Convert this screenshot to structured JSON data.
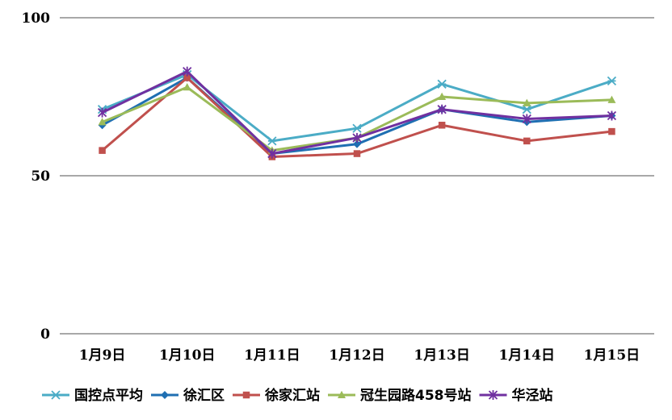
{
  "chart_data": {
    "type": "line",
    "categories": [
      "1月9日",
      "1月10日",
      "1月11日",
      "1月12日",
      "1月13日",
      "1月14日",
      "1月15日"
    ],
    "ylim": [
      0,
      100
    ],
    "yticks": [
      0,
      50,
      100
    ],
    "grid": true,
    "legend_position": "bottom",
    "series": [
      {
        "name": "国控点平均",
        "color": "#4bacc6",
        "marker": "asterisk",
        "values": [
          71,
          82,
          61,
          65,
          79,
          71,
          80
        ]
      },
      {
        "name": "徐汇区",
        "color": "#1f6fb2",
        "marker": "diamond",
        "values": [
          66,
          81,
          57,
          60,
          71,
          67,
          69
        ]
      },
      {
        "name": "徐家汇站",
        "color": "#c0504d",
        "marker": "square",
        "values": [
          58,
          81,
          56,
          57,
          66,
          61,
          64
        ]
      },
      {
        "name": "冠生园路458号站",
        "color": "#9bbb59",
        "marker": "triangle",
        "values": [
          67,
          78,
          58,
          62,
          75,
          73,
          74
        ]
      },
      {
        "name": "华泾站",
        "color": "#7030a0",
        "marker": "star",
        "values": [
          70,
          83,
          57,
          62,
          71,
          68,
          69
        ]
      }
    ]
  }
}
